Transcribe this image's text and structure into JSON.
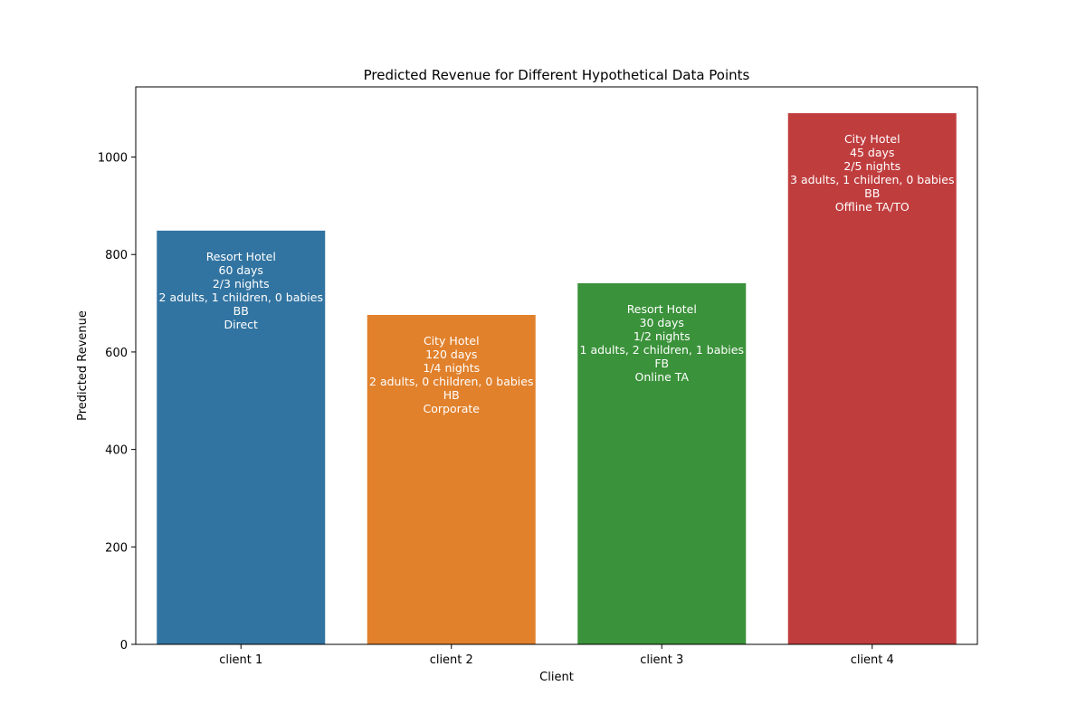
{
  "chart_data": {
    "type": "bar",
    "title": "Predicted Revenue for Different Hypothetical Data Points",
    "xlabel": "Client",
    "ylabel": "Predicted Revenue",
    "ylim": [
      0,
      1144
    ],
    "yticks": [
      0,
      200,
      400,
      600,
      800,
      1000
    ],
    "grid": false,
    "categories": [
      "client 1",
      "client 2",
      "client 3",
      "client 4"
    ],
    "values": [
      849,
      676,
      741,
      1090
    ],
    "colors": [
      "#3274a1",
      "#e1812c",
      "#3a923a",
      "#c03d3e"
    ],
    "annotations": [
      [
        "Resort Hotel",
        "60 days",
        "2/3 nights",
        "2 adults, 1 children, 0 babies",
        "BB",
        "Direct"
      ],
      [
        "City Hotel",
        "120 days",
        "1/4 nights",
        "2 adults, 0 children, 0 babies",
        "HB",
        "Corporate"
      ],
      [
        "Resort Hotel",
        "30 days",
        "1/2 nights",
        "1 adults, 2 children, 1 babies",
        "FB",
        "Online TA"
      ],
      [
        "City Hotel",
        "45 days",
        "2/5 nights",
        "3 adults, 1 children, 0 babies",
        "BB",
        "Offline TA/TO"
      ]
    ]
  }
}
